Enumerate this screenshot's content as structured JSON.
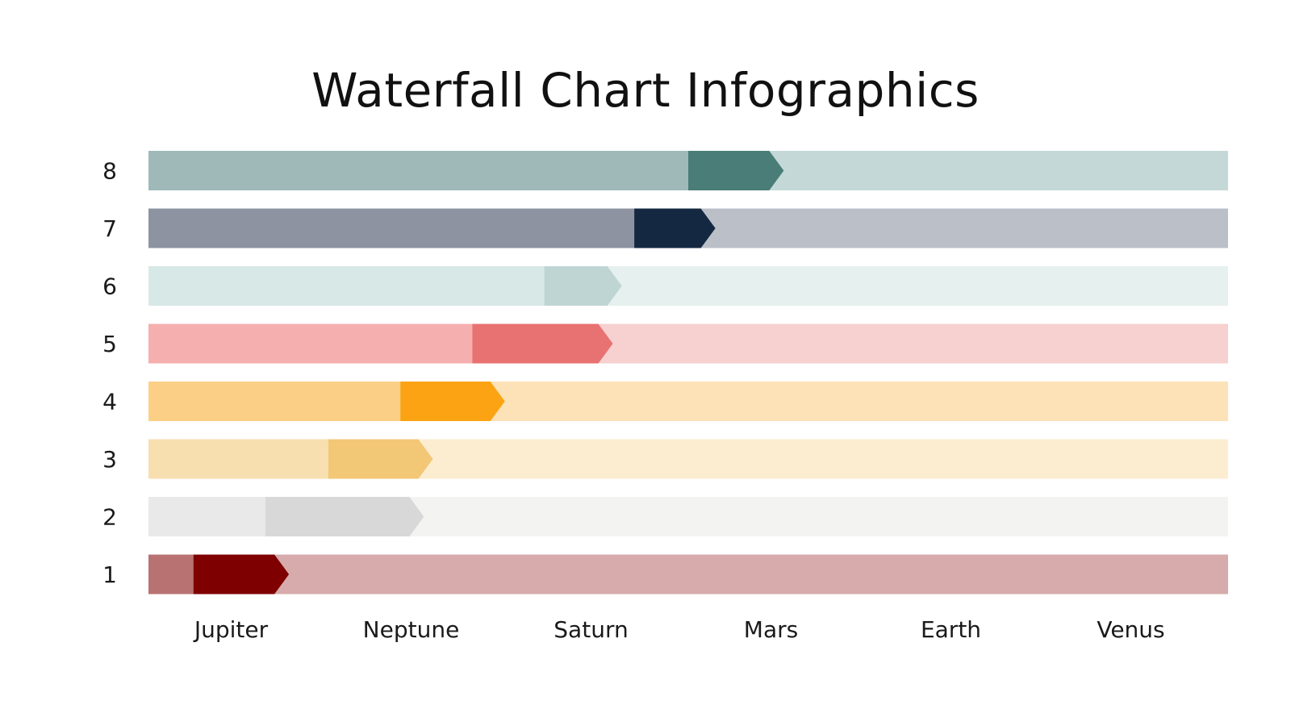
{
  "chart_data": {
    "type": "bar",
    "title": "Waterfall Chart Infographics",
    "categories": [
      "Jupiter",
      "Neptune",
      "Saturn",
      "Mars",
      "Earth",
      "Venus"
    ],
    "xlim": [
      0,
      6
    ],
    "rows": [
      {
        "label": "8",
        "start": 3.0,
        "end": 3.45,
        "colors": {
          "filled": "#9fb9b9",
          "step": "#4a7d77",
          "rest": "#c4d8d7"
        }
      },
      {
        "label": "7",
        "start": 2.7,
        "end": 3.07,
        "colors": {
          "filled": "#8d93a0",
          "step": "#152842",
          "rest": "#bbbfc8"
        }
      },
      {
        "label": "6",
        "start": 2.2,
        "end": 2.55,
        "colors": {
          "filled": "#d7e8e7",
          "step": "#bfd5d4",
          "rest": "#e6f0ef"
        }
      },
      {
        "label": "5",
        "start": 1.8,
        "end": 2.5,
        "colors": {
          "filled": "#f5afaf",
          "step": "#e87272",
          "rest": "#f7d0d0"
        }
      },
      {
        "label": "4",
        "start": 1.4,
        "end": 1.9,
        "colors": {
          "filled": "#fccf86",
          "step": "#fba312",
          "rest": "#fde2b7"
        }
      },
      {
        "label": "3",
        "start": 1.0,
        "end": 1.5,
        "colors": {
          "filled": "#f7dfb0",
          "step": "#f2c775",
          "rest": "#fcedd1"
        }
      },
      {
        "label": "2",
        "start": 0.65,
        "end": 1.45,
        "colors": {
          "filled": "#e9e9e9",
          "step": "#d8d8d8",
          "rest": "#f3f3f2"
        }
      },
      {
        "label": "1",
        "start": 0.25,
        "end": 0.7,
        "colors": {
          "filled": "#b87272",
          "step": "#7e0000",
          "rest": "#d7abab"
        }
      }
    ]
  }
}
